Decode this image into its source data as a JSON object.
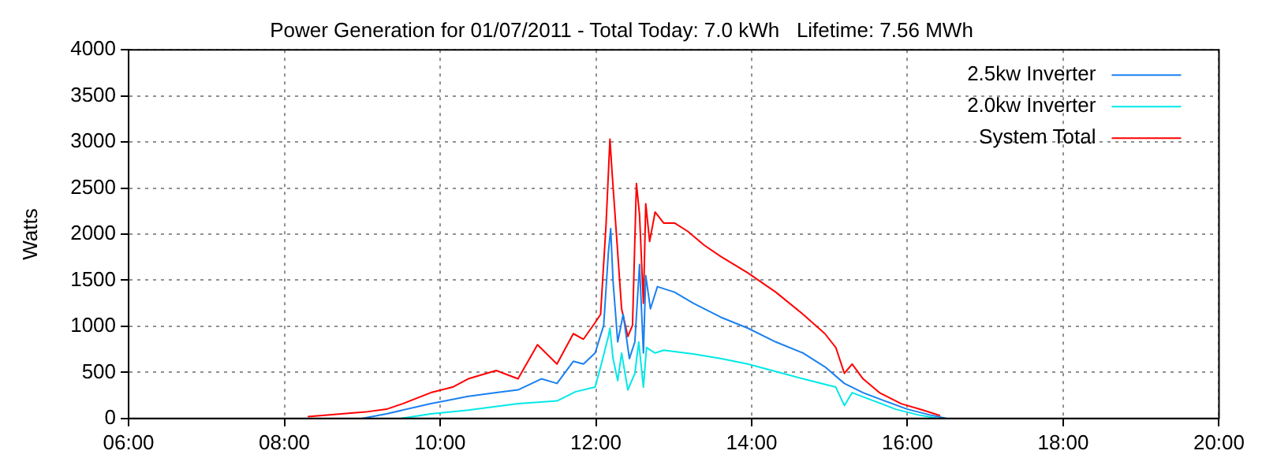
{
  "chart_data": {
    "type": "line",
    "title": "Power Generation for 01/07/2011 - Total Today: 7.0 kWh   Lifetime: 7.56 MWh",
    "ylabel": "Watts",
    "xlim": [
      6,
      20
    ],
    "xticks": [
      {
        "value": 6,
        "label": "06:00"
      },
      {
        "value": 8,
        "label": "08:00"
      },
      {
        "value": 10,
        "label": "10:00"
      },
      {
        "value": 12,
        "label": "12:00"
      },
      {
        "value": 14,
        "label": "14:00"
      },
      {
        "value": 16,
        "label": "16:00"
      },
      {
        "value": 18,
        "label": "18:00"
      },
      {
        "value": 20,
        "label": "20:00"
      }
    ],
    "ylim": [
      0,
      4000
    ],
    "yticks": [
      0,
      500,
      1000,
      1500,
      2000,
      2500,
      3000,
      3500,
      4000
    ],
    "grid": true,
    "legend": "top right",
    "marker": "none",
    "line_style": "solid",
    "series": [
      {
        "name": "2.5kw Inverter",
        "color": "#1a80f0",
        "x": [
          9.0,
          9.31,
          9.88,
          10.36,
          10.72,
          11.0,
          11.3,
          11.5,
          11.71,
          11.84,
          11.99,
          12.1,
          12.16,
          12.19,
          12.22,
          12.28,
          12.35,
          12.43,
          12.5,
          12.56,
          12.61,
          12.64,
          12.7,
          12.79,
          13.01,
          13.25,
          13.6,
          13.95,
          14.31,
          14.66,
          14.94,
          15.19,
          15.43,
          15.71,
          16.0,
          16.28,
          16.5
        ],
        "values": [
          0,
          50,
          160,
          240,
          280,
          310,
          430,
          380,
          620,
          590,
          710,
          1010,
          1800,
          2060,
          1490,
          830,
          1130,
          650,
          830,
          1670,
          710,
          1550,
          1190,
          1430,
          1370,
          1250,
          1100,
          980,
          830,
          710,
          560,
          380,
          280,
          190,
          100,
          40,
          0
        ]
      },
      {
        "name": "2.0kw Inverter",
        "color": "#00e8e8",
        "x": [
          9.5,
          9.88,
          10.36,
          11.0,
          11.5,
          11.74,
          11.99,
          12.07,
          12.16,
          12.18,
          12.22,
          12.28,
          12.33,
          12.41,
          12.5,
          12.55,
          12.61,
          12.65,
          12.76,
          12.87,
          13.25,
          13.6,
          13.95,
          14.31,
          14.66,
          15.08,
          15.19,
          15.29,
          15.57,
          15.85,
          16.13,
          16.4
        ],
        "values": [
          0,
          50,
          90,
          160,
          190,
          290,
          340,
          590,
          890,
          980,
          650,
          410,
          710,
          310,
          490,
          830,
          340,
          770,
          710,
          740,
          700,
          650,
          590,
          510,
          430,
          340,
          140,
          280,
          190,
          100,
          40,
          0
        ]
      },
      {
        "name": "System Total",
        "color": "#ff0000",
        "x": [
          8.3,
          9.04,
          9.31,
          9.52,
          9.88,
          10.16,
          10.36,
          10.72,
          11.0,
          11.25,
          11.5,
          11.71,
          11.84,
          11.99,
          12.06,
          12.13,
          12.18,
          12.21,
          12.27,
          12.33,
          12.41,
          12.47,
          12.52,
          12.56,
          12.61,
          12.64,
          12.69,
          12.76,
          12.87,
          13.01,
          13.18,
          13.39,
          13.6,
          13.95,
          14.31,
          14.66,
          14.94,
          15.08,
          15.19,
          15.29,
          15.43,
          15.64,
          15.92,
          16.2,
          16.42
        ],
        "values": [
          20,
          70,
          100,
          160,
          280,
          340,
          430,
          520,
          430,
          800,
          590,
          920,
          860,
          1040,
          1130,
          2100,
          3030,
          2640,
          1920,
          1190,
          890,
          1010,
          2550,
          2210,
          1250,
          2330,
          1920,
          2240,
          2120,
          2120,
          2030,
          1880,
          1760,
          1580,
          1370,
          1130,
          920,
          770,
          490,
          590,
          430,
          280,
          160,
          90,
          30
        ]
      }
    ]
  }
}
